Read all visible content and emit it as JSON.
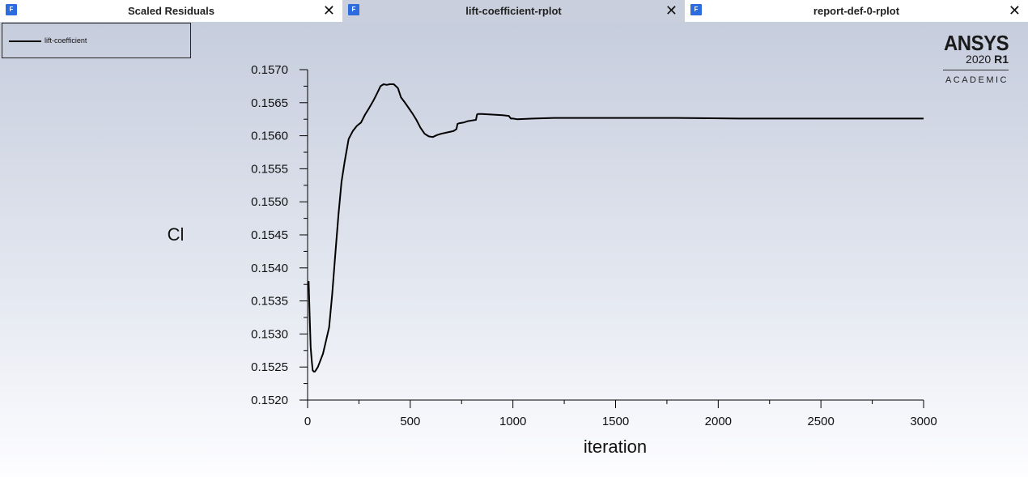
{
  "tabs": [
    {
      "label": "Scaled Residuals",
      "icon": "fluent-icon",
      "icon_text": "F",
      "active": false
    },
    {
      "label": "lift-coefficient-rplot",
      "icon": "fluent-icon",
      "icon_text": "F",
      "active": true
    },
    {
      "label": "report-def-0-rplot",
      "icon": "fluent-icon",
      "icon_text": "F",
      "active": false
    }
  ],
  "close_glyph": "✕",
  "logo": {
    "brand": "ANSYS",
    "version": "2020",
    "release": "R1",
    "edition": "ACADEMIC"
  },
  "colors": {
    "active_tab": "#c9cfdc",
    "plot_bg_top": "#c6cddd",
    "plot_bg_bottom": "#fdfdff",
    "line": "#000000",
    "tab_icon": "#2d6cdf"
  },
  "chart_data": {
    "type": "line",
    "title": "",
    "xlabel": "iteration",
    "ylabel": "Cl",
    "xlim": [
      0,
      3000
    ],
    "ylim": [
      0.152,
      0.157
    ],
    "xticks": [
      0,
      500,
      1000,
      1500,
      2000,
      2500,
      3000
    ],
    "xtick_labels": [
      "0",
      "500",
      "1000",
      "1500",
      "2000",
      "2500",
      "3000"
    ],
    "yticks": [
      0.152,
      0.1525,
      0.153,
      0.1535,
      0.154,
      0.1545,
      0.155,
      0.1555,
      0.156,
      0.1565,
      0.157
    ],
    "ytick_labels": [
      "0.1520",
      "0.1525",
      "0.1530",
      "0.1535",
      "0.1540",
      "0.1545",
      "0.1550",
      "0.1555",
      "0.1560",
      "0.1565",
      "0.1570"
    ],
    "grid": false,
    "legend_position": "top-left",
    "series": [
      {
        "name": "lift-coefficient",
        "x": [
          5,
          10,
          15,
          20,
          25,
          30,
          35,
          40,
          50,
          60,
          75,
          90,
          105,
          120,
          135,
          150,
          165,
          180,
          200,
          220,
          240,
          260,
          280,
          300,
          320,
          340,
          355,
          370,
          385,
          400,
          420,
          440,
          455,
          470,
          490,
          510,
          530,
          550,
          570,
          590,
          610,
          630,
          650,
          680,
          710,
          720,
          725,
          730,
          740,
          760,
          780,
          800,
          820,
          825,
          830,
          850,
          900,
          950,
          980,
          990,
          1000,
          1020,
          1100,
          1200,
          1300,
          1500,
          1800,
          2100,
          2400,
          2700,
          3000
        ],
        "y": [
          0.1538,
          0.1533,
          0.1528,
          0.1526,
          0.15245,
          0.15243,
          0.15243,
          0.15245,
          0.1525,
          0.15258,
          0.1527,
          0.1529,
          0.1531,
          0.1536,
          0.1542,
          0.1548,
          0.1553,
          0.1556,
          0.15595,
          0.15607,
          0.15615,
          0.1562,
          0.15632,
          0.15642,
          0.15653,
          0.15665,
          0.15675,
          0.15678,
          0.15677,
          0.15678,
          0.15678,
          0.15672,
          0.15658,
          0.15652,
          0.15643,
          0.15634,
          0.15624,
          0.15612,
          0.15603,
          0.15599,
          0.15598,
          0.15601,
          0.15603,
          0.15605,
          0.15607,
          0.15609,
          0.1561,
          0.15618,
          0.15619,
          0.1562,
          0.15622,
          0.15623,
          0.15624,
          0.15632,
          0.15633,
          0.15633,
          0.15632,
          0.15631,
          0.1563,
          0.15626,
          0.15626,
          0.15625,
          0.15626,
          0.15627,
          0.15627,
          0.15627,
          0.15627,
          0.15626,
          0.15626,
          0.15626,
          0.15626
        ]
      }
    ]
  }
}
